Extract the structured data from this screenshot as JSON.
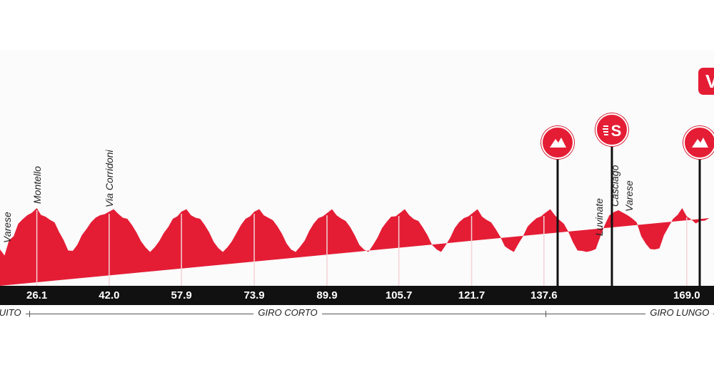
{
  "chart_data": {
    "type": "area",
    "title": "",
    "xlabel": "",
    "ylabel": "",
    "x_ticks": [
      26.1,
      42.0,
      57.9,
      73.9,
      89.9,
      105.7,
      121.7,
      137.6,
      169.0
    ],
    "x_tick_labels": [
      "26.1",
      "42.0",
      "57.9",
      "73.9",
      "89.9",
      "105.7",
      "121.7",
      "137.6",
      "169.0"
    ],
    "xlim": [
      18,
      175
    ],
    "profile": {
      "x_km": [
        18.0,
        19.0,
        20.0,
        21.0,
        22.0,
        23.0,
        24.0,
        25.0,
        26.1,
        27.0,
        28.0,
        29.0,
        30.0,
        31.0,
        32.0,
        33.0,
        34.0,
        35.0,
        36.0,
        37.0,
        38.0,
        39.0,
        40.0,
        41.0,
        42.0,
        43.0,
        44.0,
        45.0,
        46.0,
        47.0,
        48.0,
        49.0,
        50.0,
        51.0,
        52.0,
        53.0,
        54.0,
        55.0,
        56.0,
        57.0,
        57.9,
        59.0,
        60.0,
        61.0,
        62.0,
        63.0,
        64.0,
        65.0,
        66.0,
        67.0,
        68.0,
        69.0,
        70.0,
        71.0,
        72.0,
        73.0,
        73.9,
        75.0,
        76.0,
        77.0,
        78.0,
        79.0,
        80.0,
        81.0,
        82.0,
        83.0,
        84.0,
        85.0,
        86.0,
        87.0,
        88.0,
        89.0,
        89.9,
        91.0,
        92.0,
        93.0,
        94.0,
        95.0,
        96.0,
        97.0,
        98.0,
        99.0,
        100.0,
        101.0,
        102.0,
        103.0,
        104.0,
        105.0,
        105.7,
        107.0,
        108.0,
        109.0,
        110.0,
        111.0,
        112.0,
        113.0,
        114.0,
        115.0,
        116.0,
        117.0,
        118.0,
        119.0,
        120.0,
        121.0,
        121.7,
        123.0,
        124.0,
        125.0,
        126.0,
        127.0,
        128.0,
        129.0,
        130.0,
        131.0,
        132.0,
        133.0,
        134.0,
        135.0,
        136.0,
        137.0,
        137.6,
        139.0,
        140.0,
        141.0,
        142.0,
        143.0,
        144.0,
        145.0,
        146.0,
        147.0,
        148.0,
        149.0,
        150.0,
        151.0,
        152.0,
        153.0,
        154.0,
        155.0,
        156.0,
        157.0,
        158.0,
        159.0,
        160.0,
        161.0,
        162.0,
        163.0,
        164.0,
        165.0,
        166.0,
        167.0,
        168.0,
        169.0,
        170.0,
        171.0,
        172.0,
        173.0,
        174.0,
        175.0
      ],
      "elevation": [
        0.42,
        0.35,
        0.55,
        0.62,
        0.78,
        0.86,
        0.9,
        0.95,
        1.0,
        0.92,
        0.88,
        0.85,
        0.8,
        0.68,
        0.55,
        0.42,
        0.4,
        0.5,
        0.62,
        0.72,
        0.8,
        0.88,
        0.9,
        0.93,
        0.95,
        1.0,
        0.92,
        0.88,
        0.85,
        0.78,
        0.66,
        0.55,
        0.45,
        0.4,
        0.45,
        0.55,
        0.65,
        0.75,
        0.85,
        0.9,
        0.95,
        1.0,
        0.9,
        0.88,
        0.85,
        0.78,
        0.66,
        0.54,
        0.44,
        0.4,
        0.45,
        0.55,
        0.65,
        0.78,
        0.85,
        0.9,
        0.95,
        1.0,
        0.9,
        0.88,
        0.83,
        0.76,
        0.64,
        0.52,
        0.42,
        0.4,
        0.46,
        0.56,
        0.68,
        0.8,
        0.86,
        0.9,
        0.93,
        1.0,
        0.9,
        0.87,
        0.82,
        0.75,
        0.62,
        0.5,
        0.42,
        0.4,
        0.48,
        0.6,
        0.72,
        0.82,
        0.88,
        0.9,
        0.92,
        1.0,
        0.9,
        0.86,
        0.82,
        0.74,
        0.62,
        0.5,
        0.42,
        0.4,
        0.48,
        0.6,
        0.72,
        0.82,
        0.86,
        0.9,
        0.92,
        1.0,
        0.88,
        0.85,
        0.8,
        0.72,
        0.6,
        0.48,
        0.42,
        0.4,
        0.5,
        0.62,
        0.74,
        0.82,
        0.86,
        0.9,
        0.92,
        1.0,
        0.9,
        0.85,
        0.78,
        0.68,
        0.52,
        0.42,
        0.4,
        0.4,
        0.4,
        0.44,
        0.6,
        0.78,
        0.9,
        0.96,
        0.97,
        0.95,
        0.9,
        0.87,
        0.8,
        0.62,
        0.5,
        0.44,
        0.42,
        0.45,
        0.62,
        0.75,
        0.85,
        0.92,
        1.0,
        0.9,
        0.84,
        0.8,
        0.82,
        0.84,
        0.86
      ]
    },
    "locations": [
      {
        "name": "Varese",
        "km": 19.5
      },
      {
        "name": "Montello",
        "km": 26.1
      },
      {
        "name": "Via Corridoni",
        "km": 42.0
      },
      {
        "name": "Luvinate",
        "km": 149.7
      },
      {
        "name": "Casciago",
        "km": 153.1
      },
      {
        "name": "Varese",
        "km": 156.3
      }
    ],
    "markers": [
      {
        "type": "climb",
        "icon": "mountain-icon",
        "km": 140.6
      },
      {
        "type": "sprint",
        "icon": "sprint-icon",
        "label": "S",
        "km": 152.5
      },
      {
        "type": "climb",
        "icon": "mountain-icon",
        "km": 171.9
      }
    ],
    "finish_badge": {
      "label": "V",
      "km": 175
    }
  },
  "sections": [
    {
      "label": "CUITO",
      "from_km": 18,
      "to_km": 24.5
    },
    {
      "label": "GIRO CORTO",
      "from_km": 24.5,
      "to_km": 138
    },
    {
      "label": "GIRO LUNGO",
      "from_km": 138,
      "to_km": 175
    }
  ],
  "colors": {
    "profile_fill": "#e41d35",
    "distance_bar": "#111111",
    "marker": "#e41d35"
  }
}
